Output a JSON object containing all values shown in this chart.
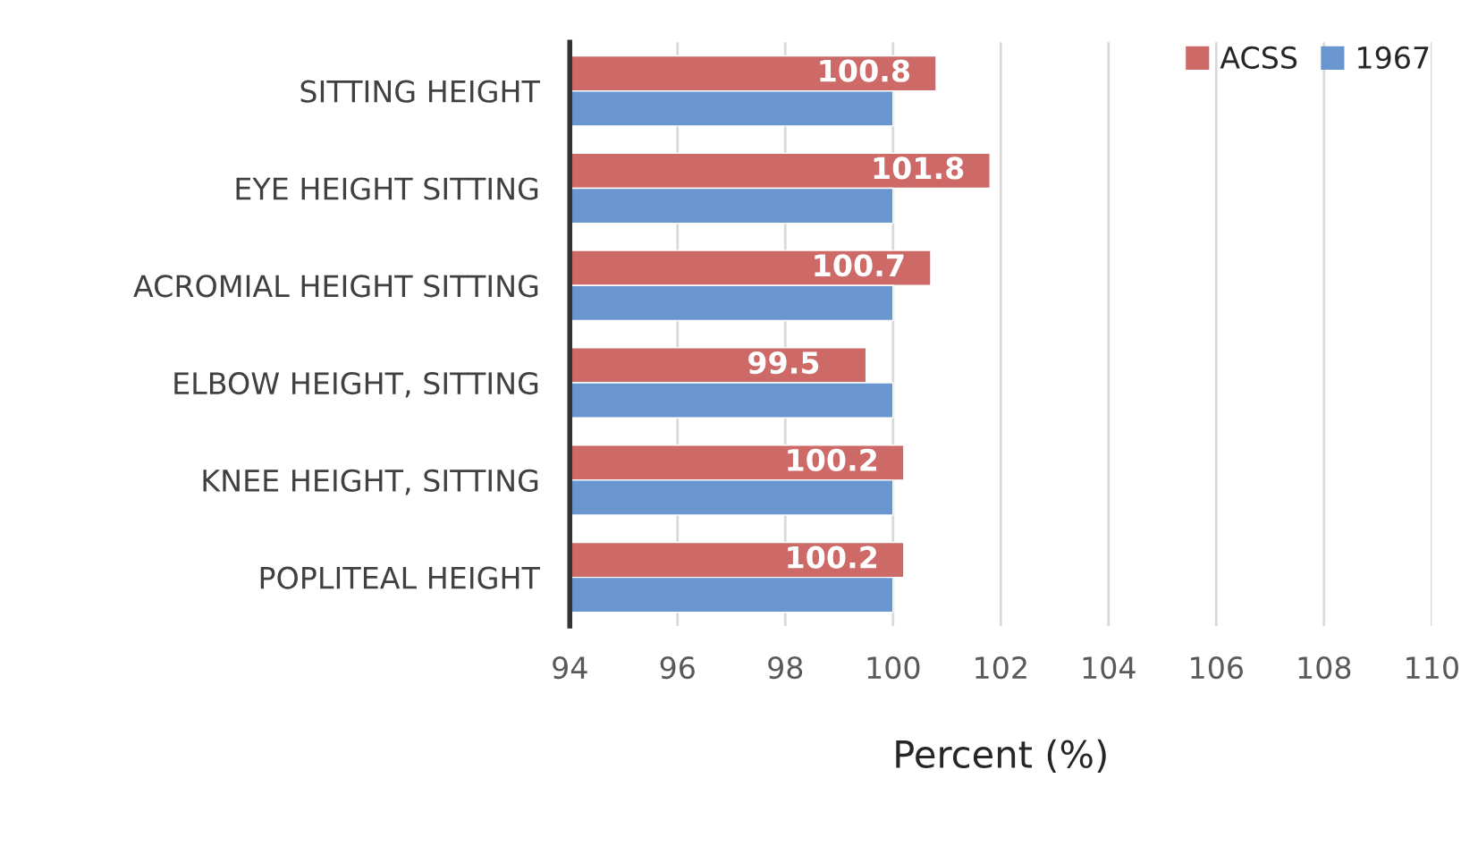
{
  "chart_data": {
    "type": "bar",
    "orientation": "horizontal",
    "xlabel": "Percent (%)",
    "categories": [
      "SITTING HEIGHT",
      "EYE HEIGHT SITTING",
      "ACROMIAL HEIGHT SITTING",
      "ELBOW HEIGHT, SITTING",
      "KNEE HEIGHT, SITTING",
      "POPLITEAL HEIGHT"
    ],
    "series": [
      {
        "name": "ACSS",
        "color": "#cd6a67",
        "values": [
          100.8,
          101.8,
          100.7,
          99.5,
          100.2,
          100.2
        ],
        "value_labels": [
          "100.8",
          "101.8",
          "100.7",
          "99.5",
          "100.2",
          "100.2"
        ]
      },
      {
        "name": "1967",
        "color": "#6a96d0",
        "values": [
          100,
          100,
          100,
          100,
          100,
          100
        ]
      }
    ],
    "xlim": [
      94,
      110
    ],
    "xticks": [
      94,
      96,
      98,
      100,
      102,
      104,
      106,
      108,
      110
    ],
    "grid": "x",
    "legend": "top right"
  }
}
